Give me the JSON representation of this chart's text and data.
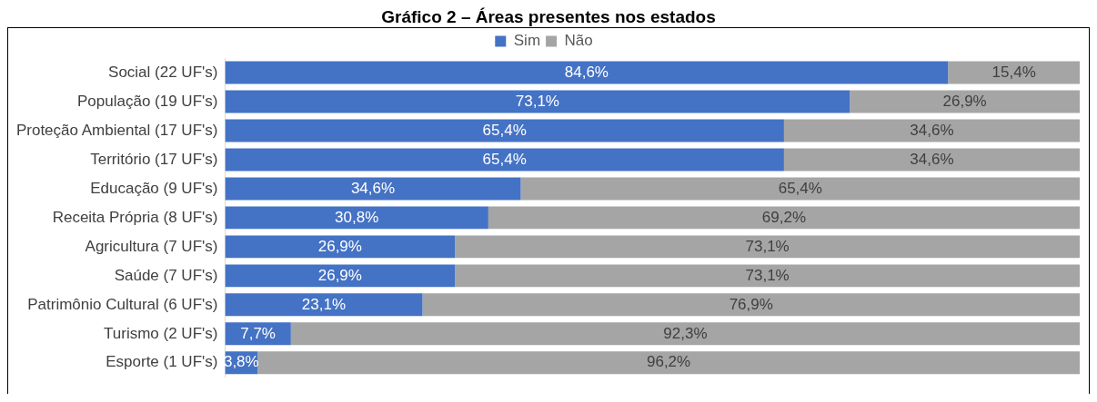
{
  "chart_data": {
    "type": "bar",
    "title": "Gráfico 2 – Áreas presentes nos estados",
    "orientation": "horizontal",
    "stacked": true,
    "legend": "top",
    "grid": false,
    "categories": [
      "Social (22 UF's)",
      "População (19 UF's)",
      "Proteção Ambiental (17 UF's)",
      "Território (17 UF's)",
      "Educação (9 UF's)",
      "Receita Própria (8 UF's)",
      "Agricultura (7 UF's)",
      "Saúde (7 UF's)",
      "Patrimônio Cultural (6 UF's)",
      "Turismo (2 UF's)",
      "Esporte (1 UF's)"
    ],
    "series": [
      {
        "name": "Sim",
        "color": "#4472c4",
        "values": [
          84.6,
          73.1,
          65.4,
          65.4,
          34.6,
          30.8,
          26.9,
          26.9,
          23.1,
          7.7,
          3.8
        ],
        "value_labels": [
          "84,6%",
          "73,1%",
          "65,4%",
          "65,4%",
          "34,6%",
          "30,8%",
          "26,9%",
          "26,9%",
          "23,1%",
          "7,7%",
          "3,8%"
        ]
      },
      {
        "name": "Não",
        "color": "#a5a5a5",
        "values": [
          15.4,
          26.9,
          34.6,
          34.6,
          65.4,
          69.2,
          73.1,
          73.1,
          76.9,
          92.3,
          96.2
        ],
        "value_labels": [
          "15,4%",
          "26,9%",
          "34,6%",
          "34,6%",
          "65,4%",
          "69,2%",
          "73,1%",
          "73,1%",
          "76,9%",
          "92,3%",
          "96,2%"
        ]
      }
    ]
  }
}
